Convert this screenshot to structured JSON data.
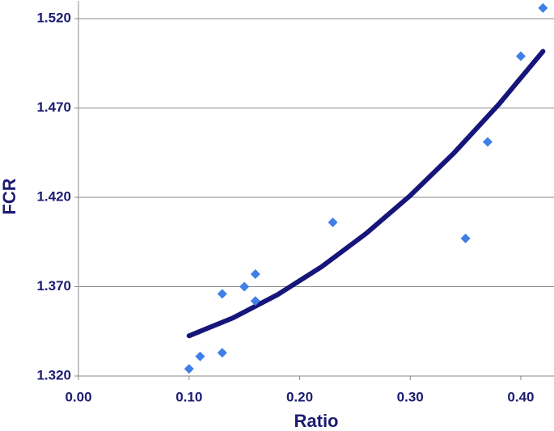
{
  "chart_data": {
    "type": "scatter",
    "x_label": "Ratio",
    "y_label": "FCR",
    "series": [
      {
        "color": "#3f7fe6",
        "x": [
          0.1,
          0.11,
          0.13,
          0.13,
          0.15,
          0.16,
          0.16,
          0.23,
          0.35,
          0.37,
          0.4,
          0.42
        ],
        "values": [
          1.324,
          1.331,
          1.333,
          1.366,
          1.37,
          1.377,
          1.362,
          1.406,
          1.397,
          1.451,
          1.499,
          1.526
        ]
      }
    ],
    "trendline": {
      "color": "#15157a",
      "x": [
        0.1,
        0.14,
        0.18,
        0.22,
        0.26,
        0.3,
        0.34,
        0.38,
        0.42
      ],
      "values": [
        1.3425,
        1.3526,
        1.3655,
        1.3812,
        1.3997,
        1.421,
        1.4451,
        1.472,
        1.5017
      ]
    },
    "xlim": [
      0,
      0.43
    ],
    "ylim": [
      1.32,
      1.53
    ],
    "xticks": [
      {
        "value": 0,
        "label": "0.00"
      },
      {
        "value": 0.1,
        "label": "0.10"
      },
      {
        "value": 0.2,
        "label": "0.20"
      },
      {
        "value": 0.3,
        "label": "0.30"
      },
      {
        "value": 0.4,
        "label": "0.40"
      }
    ],
    "yticks": [
      {
        "value": 1.32,
        "label": "1.320"
      },
      {
        "value": 1.37,
        "label": "1.370"
      },
      {
        "value": 1.42,
        "label": "1.420"
      },
      {
        "value": 1.47,
        "label": "1.470"
      },
      {
        "value": 1.52,
        "label": "1.520"
      }
    ],
    "grid": true
  }
}
